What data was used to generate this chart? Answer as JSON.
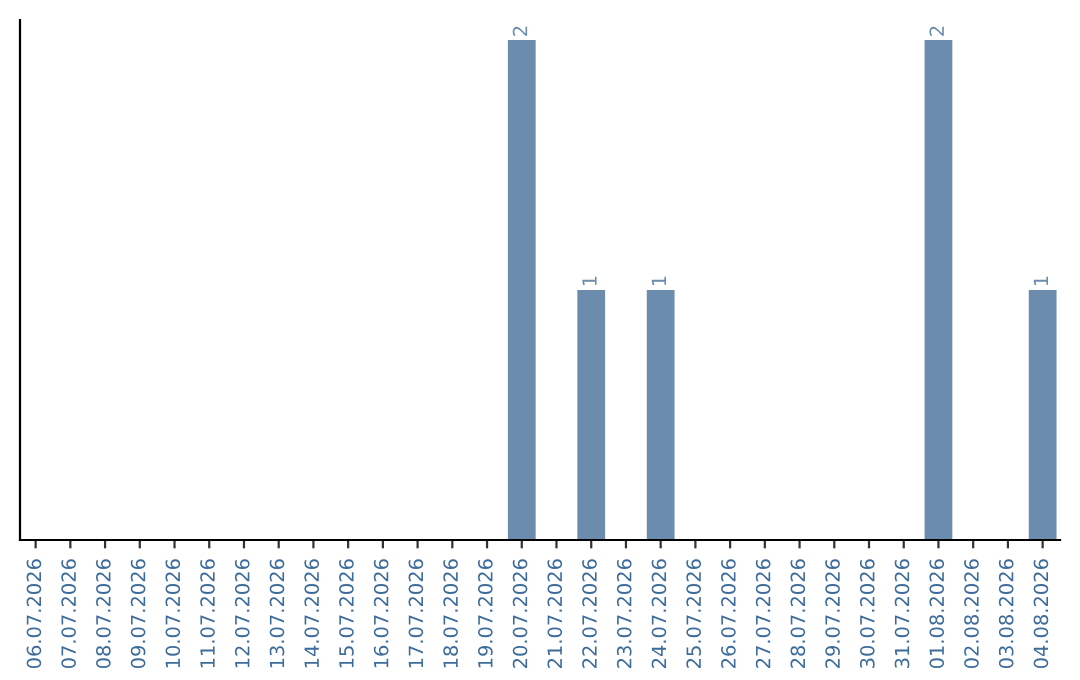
{
  "chart_data": {
    "type": "bar",
    "categories": [
      "06.07.2026",
      "07.07.2026",
      "08.07.2026",
      "09.07.2026",
      "10.07.2026",
      "11.07.2026",
      "12.07.2026",
      "13.07.2026",
      "14.07.2026",
      "15.07.2026",
      "16.07.2026",
      "17.07.2026",
      "18.07.2026",
      "19.07.2026",
      "20.07.2026",
      "21.07.2026",
      "22.07.2026",
      "23.07.2026",
      "24.07.2026",
      "25.07.2026",
      "26.07.2026",
      "27.07.2026",
      "28.07.2026",
      "29.07.2026",
      "30.07.2026",
      "31.07.2026",
      "01.08.2026",
      "02.08.2026",
      "03.08.2026",
      "04.08.2026"
    ],
    "values": [
      null,
      null,
      null,
      null,
      null,
      null,
      null,
      null,
      null,
      null,
      null,
      null,
      null,
      null,
      2,
      null,
      1,
      null,
      1,
      null,
      null,
      null,
      null,
      null,
      null,
      null,
      2,
      null,
      null,
      1
    ],
    "data_labels": true,
    "color": "#6b8cac",
    "tick_labels": "x",
    "grid": false,
    "legend": false
  }
}
